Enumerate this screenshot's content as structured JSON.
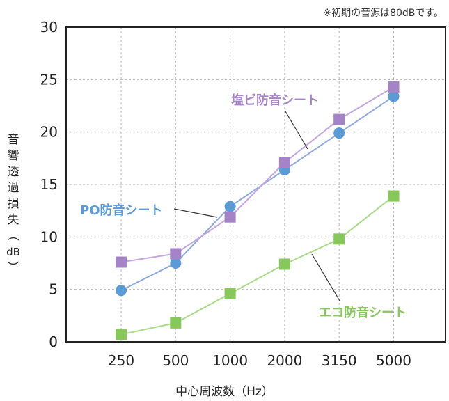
{
  "note": "※初期の音源は80dBです。",
  "chart_data": {
    "type": "line",
    "categories": [
      "250",
      "500",
      "1000",
      "2000",
      "3150",
      "5000"
    ],
    "ylim": [
      0,
      30
    ],
    "yticks": [
      0,
      5,
      10,
      15,
      20,
      25,
      30
    ],
    "xlabel": "中心周波数（Hz）",
    "ylabel": "音響透過損失（dB）",
    "grid": true,
    "series": [
      {
        "name": "PO防音シート",
        "marker": "circle",
        "color": "#5b9bd5",
        "line_color": "#8faadc",
        "values": [
          4.9,
          7.5,
          12.9,
          16.4,
          19.9,
          23.4
        ]
      },
      {
        "name": "塩ビ防音シート",
        "marker": "square",
        "color": "#a583c7",
        "line_color": "#c3a6e0",
        "values": [
          7.6,
          8.4,
          11.9,
          17.1,
          21.2,
          24.3
        ]
      },
      {
        "name": "エコ防音シート",
        "marker": "square",
        "color": "#86c85a",
        "line_color": "#a9d98a",
        "values": [
          0.7,
          1.8,
          4.6,
          7.4,
          9.8,
          13.9
        ]
      }
    ]
  }
}
